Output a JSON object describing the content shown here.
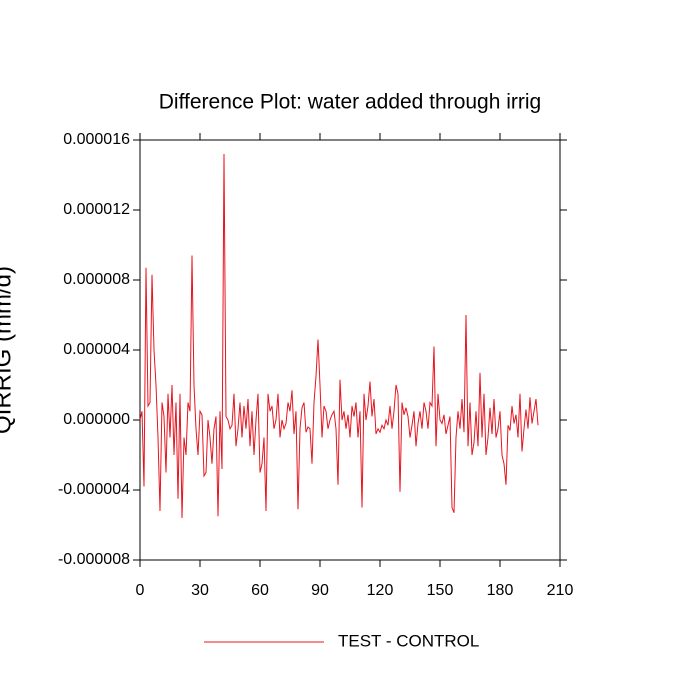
{
  "chart_data": {
    "type": "line",
    "title": "Difference Plot: water added through irrig",
    "y_label": "QIRRIG  (mm/d)",
    "xlim": [
      0,
      210
    ],
    "xticks": [
      0,
      30,
      60,
      90,
      120,
      150,
      180,
      210
    ],
    "ylim": [
      -8e-06,
      1.6e-05
    ],
    "yticks": [
      {
        "value": -8e-06,
        "label": "-0.000008"
      },
      {
        "value": -4e-06,
        "label": "-0.000004"
      },
      {
        "value": 0,
        "label": "0.000000"
      },
      {
        "value": 4e-06,
        "label": "0.000004"
      },
      {
        "value": 8e-06,
        "label": "0.000008"
      },
      {
        "value": 1.2e-05,
        "label": "0.000012"
      },
      {
        "value": 1.6e-05,
        "label": "0.000016"
      }
    ],
    "x": [
      0,
      1,
      2,
      3,
      4,
      5,
      6,
      7,
      8,
      9,
      10,
      11,
      12,
      13,
      14,
      15,
      16,
      17,
      18,
      19,
      20,
      21,
      22,
      23,
      24,
      25,
      26,
      27,
      28,
      29,
      30,
      31,
      32,
      33,
      34,
      35,
      36,
      37,
      38,
      39,
      40,
      41,
      42,
      43,
      44,
      45,
      46,
      47,
      48,
      49,
      50,
      51,
      52,
      53,
      54,
      55,
      56,
      57,
      58,
      59,
      60,
      61,
      62,
      63,
      64,
      65,
      66,
      67,
      68,
      69,
      70,
      71,
      72,
      73,
      74,
      75,
      76,
      77,
      78,
      79,
      80,
      81,
      82,
      83,
      84,
      85,
      86,
      87,
      88,
      89,
      90,
      91,
      92,
      93,
      94,
      95,
      96,
      97,
      98,
      99,
      100,
      101,
      102,
      103,
      104,
      105,
      106,
      107,
      108,
      109,
      110,
      111,
      112,
      113,
      114,
      115,
      116,
      117,
      118,
      119,
      120,
      121,
      122,
      123,
      124,
      125,
      126,
      127,
      128,
      129,
      130,
      131,
      132,
      133,
      134,
      135,
      136,
      137,
      138,
      139,
      140,
      141,
      142,
      143,
      144,
      145,
      146,
      147,
      148,
      149,
      150,
      151,
      152,
      153,
      154,
      155,
      156,
      157,
      158,
      159,
      160,
      161,
      162,
      163,
      164,
      165,
      166,
      167,
      168,
      169,
      170,
      171,
      172,
      173,
      174,
      175,
      176,
      177,
      178,
      179,
      180,
      181,
      182,
      183,
      184,
      185,
      186,
      187,
      188,
      189,
      190,
      191,
      192,
      193,
      194,
      195,
      196,
      197,
      198,
      199
    ],
    "series": [
      {
        "name": "TEST - CONTROL",
        "color": "#e8141e",
        "values": [
          0,
          5e-07,
          -3.8e-06,
          8.7e-06,
          8e-07,
          1e-06,
          8.3e-06,
          4e-06,
          2e-06,
          -1e-06,
          -5.2e-06,
          1e-06,
          2e-07,
          -3e-06,
          1.5e-06,
          -1e-06,
          2e-06,
          -2e-06,
          1e-06,
          -4.5e-06,
          1.5e-06,
          -5.6e-06,
          -1e-06,
          -2e-06,
          1e-06,
          5e-07,
          9.4e-06,
          2e-06,
          -5e-07,
          -2e-06,
          5e-07,
          3e-07,
          -3.2e-06,
          -3e-06,
          0,
          -1e-06,
          -2.5e-06,
          -5e-07,
          2e-07,
          -5.5e-06,
          5e-07,
          -2.8e-06,
          1.52e-05,
          2e-07,
          0,
          -5e-07,
          -3e-07,
          1.5e-06,
          -1.5e-06,
          -5e-07,
          1e-06,
          -1e-06,
          8e-07,
          -5e-07,
          1.2e-06,
          -1.5e-06,
          5e-07,
          -2e-06,
          0,
          1.5e-06,
          -3e-06,
          -2.5e-06,
          -1e-06,
          -5.2e-06,
          1.5e-06,
          5e-07,
          8e-07,
          -5e-07,
          0,
          1.5e-06,
          -1e-06,
          0,
          -5e-07,
          -2e-07,
          1e-06,
          5e-07,
          1.7e-06,
          -8e-07,
          5e-07,
          -5.1e-06,
          -5e-07,
          7e-07,
          1e-06,
          -7e-07,
          -4e-07,
          -5e-07,
          -2.5e-06,
          1e-06,
          2.5e-06,
          4.6e-06,
          2e-06,
          -1e-06,
          8e-07,
          5e-07,
          -5e-07,
          0,
          3e-07,
          5e-07,
          -5e-07,
          -3.7e-06,
          2.3e-06,
          0,
          5e-07,
          -5e-07,
          3e-07,
          -1e-06,
          8e-07,
          2e-07,
          1e-06,
          -1e-06,
          5e-07,
          -5e-06,
          1.5e-06,
          0,
          8e-07,
          2.2e-06,
          2e-07,
          1.2e-06,
          -8e-07,
          -5e-07,
          -7e-07,
          -3e-07,
          -5e-07,
          0,
          -3e-07,
          8e-07,
          -5e-07,
          5e-07,
          2e-06,
          1.5e-06,
          -4.1e-06,
          1e-06,
          3e-07,
          7e-07,
          2e-07,
          -1e-06,
          -3e-07,
          5e-07,
          -1.5e-06,
          -2e-07,
          5e-07,
          -5e-07,
          1e-06,
          5e-07,
          -5e-07,
          1e-06,
          8e-07,
          4.2e-06,
          -1.5e-06,
          1.5e-06,
          0,
          -2e-07,
          3e-07,
          -8e-07,
          -3e-07,
          2e-07,
          -5e-06,
          -5.3e-06,
          -1e-06,
          5e-07,
          -5e-07,
          1.2e-06,
          -7e-07,
          6e-06,
          -1.5e-06,
          1e-06,
          -2e-06,
          -1.3e-06,
          5e-07,
          -1.5e-06,
          2.7e-06,
          -1e-06,
          1.5e-06,
          -2e-06,
          -1e-06,
          7e-07,
          -8e-07,
          1.2e-06,
          -1e-06,
          -5e-07,
          5e-07,
          -2e-06,
          -2.5e-06,
          -3.7e-06,
          -3e-07,
          -6e-07,
          8e-07,
          -2e-07,
          3e-07,
          -1e-06,
          1.5e-06,
          -1.8e-06,
          -5e-07,
          6e-07,
          -5e-07,
          1.3e-06,
          -2e-07,
          5e-07,
          1.2e-06,
          -3e-07
        ]
      }
    ]
  }
}
